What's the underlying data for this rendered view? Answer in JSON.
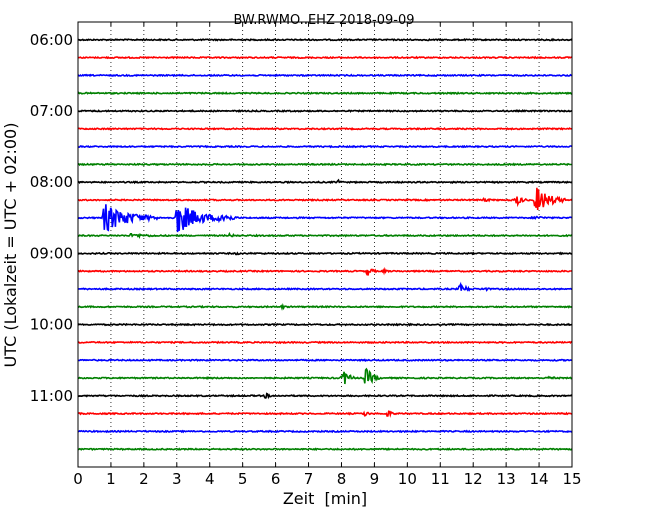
{
  "chart_data": {
    "type": "line",
    "title": "BW.RWMO..EHZ 2018-09-09",
    "xlabel": "Zeit  [min]",
    "ylabel": "UTC (Lokalzeit = UTC + 02:00)",
    "xlim": [
      0,
      15
    ],
    "x_ticks": [
      0,
      1,
      2,
      3,
      4,
      5,
      6,
      7,
      8,
      9,
      10,
      11,
      12,
      13,
      14,
      15
    ],
    "x_tick_labels": [
      "0",
      "1",
      "2",
      "3",
      "4",
      "5",
      "6",
      "7",
      "8",
      "9",
      "10",
      "11",
      "12",
      "13",
      "14",
      "15"
    ],
    "ylim": [
      "05:45",
      "12:00"
    ],
    "y_ticks": [
      "06:00",
      "07:00",
      "08:00",
      "09:00",
      "10:00",
      "11:00"
    ],
    "grid": true,
    "trace_colors": [
      "#000000",
      "#ff0000",
      "#0000ff",
      "#008000"
    ],
    "traces": [
      {
        "start": "06:00",
        "color": "#000000"
      },
      {
        "start": "06:15",
        "color": "#ff0000"
      },
      {
        "start": "06:30",
        "color": "#0000ff"
      },
      {
        "start": "06:45",
        "color": "#008000"
      },
      {
        "start": "07:00",
        "color": "#000000"
      },
      {
        "start": "07:15",
        "color": "#ff0000"
      },
      {
        "start": "07:30",
        "color": "#0000ff"
      },
      {
        "start": "07:45",
        "color": "#008000"
      },
      {
        "start": "08:00",
        "color": "#000000",
        "events": [
          {
            "t": 7.9,
            "amp": 3,
            "dur": 0.2
          }
        ]
      },
      {
        "start": "08:15",
        "color": "#ff0000",
        "events": [
          {
            "t": 13.3,
            "amp": 6,
            "dur": 0.4
          },
          {
            "t": 13.9,
            "amp": 14,
            "dur": 0.9
          },
          {
            "t": 12.3,
            "amp": 2,
            "dur": 0.6
          }
        ]
      },
      {
        "start": "08:30",
        "color": "#0000ff",
        "events": [
          {
            "t": 0.8,
            "amp": 15,
            "dur": 1.6
          },
          {
            "t": 3.0,
            "amp": 17,
            "dur": 1.4
          },
          {
            "t": 4.3,
            "amp": 8,
            "dur": 0.6
          },
          {
            "t": 13.9,
            "amp": 2,
            "dur": 0.8
          }
        ]
      },
      {
        "start": "08:45",
        "color": "#008000",
        "events": [
          {
            "t": 1.6,
            "amp": 2,
            "dur": 1.8
          },
          {
            "t": 4.6,
            "amp": 2,
            "dur": 0.4
          }
        ]
      },
      {
        "start": "09:00",
        "color": "#000000",
        "events": [
          {
            "t": 4.8,
            "amp": 1.5,
            "dur": 0.4
          }
        ]
      },
      {
        "start": "09:15",
        "color": "#ff0000",
        "events": [
          {
            "t": 8.8,
            "amp": 5,
            "dur": 0.3
          },
          {
            "t": 9.3,
            "amp": 2,
            "dur": 0.3
          }
        ]
      },
      {
        "start": "09:30",
        "color": "#0000ff",
        "events": [
          {
            "t": 11.6,
            "amp": 5,
            "dur": 0.5
          },
          {
            "t": 12.3,
            "amp": 3,
            "dur": 0.3
          }
        ]
      },
      {
        "start": "09:45",
        "color": "#008000",
        "events": [
          {
            "t": 6.2,
            "amp": 2,
            "dur": 0.3
          }
        ]
      },
      {
        "start": "10:00",
        "color": "#000000"
      },
      {
        "start": "10:15",
        "color": "#ff0000"
      },
      {
        "start": "10:30",
        "color": "#0000ff"
      },
      {
        "start": "10:45",
        "color": "#008000",
        "events": [
          {
            "t": 8.05,
            "amp": 9,
            "dur": 0.4
          },
          {
            "t": 8.75,
            "amp": 11,
            "dur": 0.4
          },
          {
            "t": 14.3,
            "amp": 2,
            "dur": 0.4
          }
        ]
      },
      {
        "start": "11:00",
        "color": "#000000",
        "events": [
          {
            "t": 5.7,
            "amp": 3,
            "dur": 0.3
          }
        ]
      },
      {
        "start": "11:15",
        "color": "#ff0000",
        "events": [
          {
            "t": 8.7,
            "amp": 3,
            "dur": 0.3
          },
          {
            "t": 9.4,
            "amp": 4,
            "dur": 0.3
          }
        ]
      },
      {
        "start": "11:30",
        "color": "#0000ff"
      },
      {
        "start": "11:45",
        "color": "#008000"
      }
    ]
  }
}
